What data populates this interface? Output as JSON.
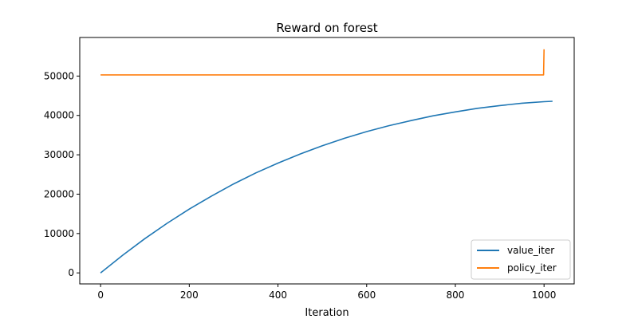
{
  "chart_data": {
    "type": "line",
    "title": "Reward on forest",
    "xlabel": "Iteration",
    "ylabel": "",
    "xlim": [
      -47,
      1068
    ],
    "ylim": [
      -2800,
      59800
    ],
    "x_ticks": [
      0,
      200,
      400,
      600,
      800,
      1000
    ],
    "y_ticks": [
      0,
      10000,
      20000,
      30000,
      40000,
      50000
    ],
    "grid": false,
    "legend_position": "lower-right",
    "series": [
      {
        "name": "value_iter",
        "color": "#1f77b4",
        "x": [
          0,
          50,
          100,
          150,
          200,
          250,
          300,
          350,
          400,
          450,
          500,
          550,
          600,
          650,
          700,
          750,
          800,
          850,
          900,
          950,
          1000,
          1019
        ],
        "y": [
          0,
          4500,
          8700,
          12600,
          16200,
          19500,
          22600,
          25400,
          27900,
          30200,
          32300,
          34200,
          35900,
          37400,
          38700,
          39900,
          40900,
          41800,
          42500,
          43100,
          43500,
          43600
        ]
      },
      {
        "name": "policy_iter",
        "color": "#ff7f0e",
        "x": [
          0,
          200,
          400,
          600,
          800,
          999,
          1000
        ],
        "y": [
          50300,
          50300,
          50300,
          50300,
          50300,
          50300,
          56800
        ]
      }
    ]
  }
}
